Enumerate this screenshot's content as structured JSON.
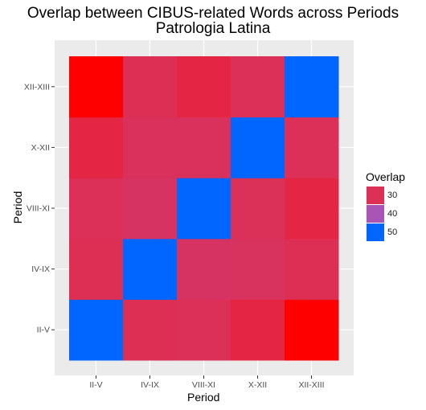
{
  "chart_data": {
    "type": "heatmap",
    "title": "Overlap between CIBUS-related Words across Periods",
    "subtitle": "Patrologia Latina",
    "xlabel": "Period",
    "ylabel": "Period",
    "x_categories": [
      "II-V",
      "IV-IX",
      "VIII-XI",
      "X-XII",
      "XII-XIII"
    ],
    "y_categories": [
      "II-V",
      "IV-IX",
      "VIII-XI",
      "X-XII",
      "XII-XIII"
    ],
    "cells": [
      {
        "x": "II-V",
        "y": "II-V",
        "value": 51
      },
      {
        "x": "IV-IX",
        "y": "II-V",
        "value": 30
      },
      {
        "x": "VIII-XI",
        "y": "II-V",
        "value": 31
      },
      {
        "x": "X-XII",
        "y": "II-V",
        "value": 29
      },
      {
        "x": "XII-XIII",
        "y": "II-V",
        "value": 25
      },
      {
        "x": "II-V",
        "y": "IV-IX",
        "value": 30
      },
      {
        "x": "IV-IX",
        "y": "IV-IX",
        "value": 51
      },
      {
        "x": "VIII-XI",
        "y": "IV-IX",
        "value": 35
      },
      {
        "x": "X-XII",
        "y": "IV-IX",
        "value": 34
      },
      {
        "x": "XII-XIII",
        "y": "IV-IX",
        "value": 30
      },
      {
        "x": "II-V",
        "y": "VIII-XI",
        "value": 31
      },
      {
        "x": "IV-IX",
        "y": "VIII-XI",
        "value": 35
      },
      {
        "x": "VIII-XI",
        "y": "VIII-XI",
        "value": 51
      },
      {
        "x": "X-XII",
        "y": "VIII-XI",
        "value": 32
      },
      {
        "x": "XII-XIII",
        "y": "VIII-XI",
        "value": 29
      },
      {
        "x": "II-V",
        "y": "X-XII",
        "value": 29
      },
      {
        "x": "IV-IX",
        "y": "X-XII",
        "value": 33
      },
      {
        "x": "VIII-XI",
        "y": "X-XII",
        "value": 33
      },
      {
        "x": "X-XII",
        "y": "X-XII",
        "value": 51
      },
      {
        "x": "XII-XIII",
        "y": "X-XII",
        "value": 31
      },
      {
        "x": "II-V",
        "y": "XII-XIII",
        "value": 25
      },
      {
        "x": "IV-IX",
        "y": "XII-XIII",
        "value": 30
      },
      {
        "x": "VIII-XI",
        "y": "XII-XIII",
        "value": 29
      },
      {
        "x": "X-XII",
        "y": "XII-XIII",
        "value": 31
      },
      {
        "x": "XII-XIII",
        "y": "XII-XIII",
        "value": 51
      }
    ],
    "legend": {
      "title": "Overlap",
      "placement": "right",
      "entries": [
        {
          "label": "30",
          "value": 30,
          "color": "#DC3057"
        },
        {
          "label": "40",
          "value": 40,
          "color": "#A855B5"
        },
        {
          "label": "50",
          "value": 50,
          "color": "#0066FF"
        }
      ]
    },
    "color_scale": {
      "low_color": "#FF0000",
      "low_value": 25,
      "high_color": "#0066FF",
      "high_value": 51
    },
    "panel_background": "#EBEBEB",
    "grid": true
  }
}
